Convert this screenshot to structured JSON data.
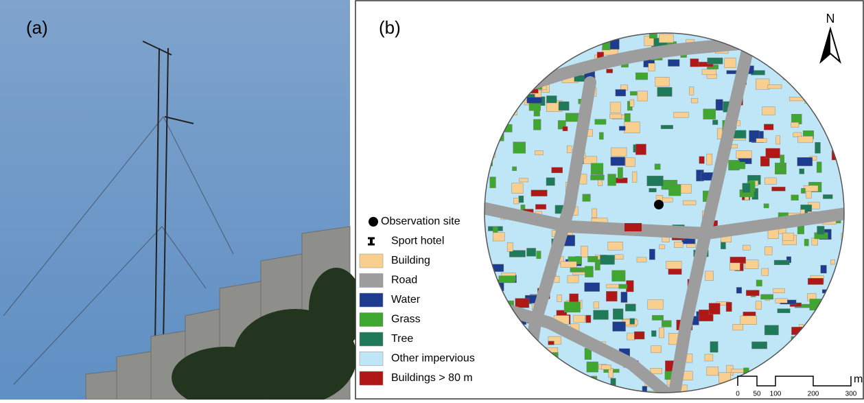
{
  "panels": {
    "a": {
      "label": "(a)"
    },
    "b": {
      "label": "(b)",
      "north": "N"
    }
  },
  "legend": [
    {
      "label": "Observation site",
      "symbol": "dot",
      "color": "#000000"
    },
    {
      "label": "Sport hotel",
      "symbol": "pin",
      "color": "#000000"
    },
    {
      "label": "Building",
      "symbol": "swatch",
      "color": "#f8cf8f"
    },
    {
      "label": "Road",
      "symbol": "swatch",
      "color": "#9d9d9d"
    },
    {
      "label": "Water",
      "symbol": "swatch",
      "color": "#1d3b8f"
    },
    {
      "label": "Grass",
      "symbol": "swatch",
      "color": "#3fa62f"
    },
    {
      "label": "Tree",
      "symbol": "swatch",
      "color": "#1f7a5a"
    },
    {
      "label": "Other impervious",
      "symbol": "swatch",
      "color": "#bfe6f7"
    },
    {
      "label": "Buildings > 80 m",
      "symbol": "swatch",
      "color": "#b01818"
    }
  ],
  "scale_bar": {
    "ticks": [
      "0",
      "50",
      "100",
      "200",
      "300"
    ],
    "unit": "m"
  }
}
